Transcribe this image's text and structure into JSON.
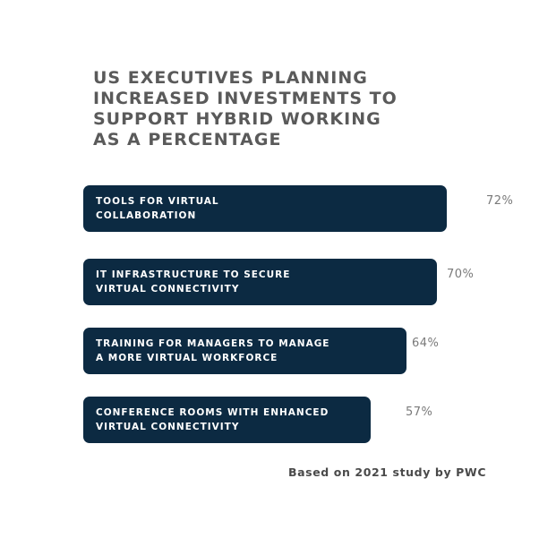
{
  "chart_data": {
    "type": "bar",
    "orientation": "horizontal",
    "title": "US EXECUTIVES PLANNING INCREASED INVESTMENTS TO SUPPORT HYBRID WORKING AS A PERCENTAGE",
    "title_lines": [
      "US EXECUTIVES PLANNING",
      "INCREASED INVESTMENTS TO",
      "SUPPORT HYBRID WORKING",
      "AS A PERCENTAGE"
    ],
    "categories": [
      "TOOLS FOR VIRTUAL COLLABORATION",
      "IT INFRASTRUCTURE TO SECURE VIRTUAL CONNECTIVITY",
      "TRAINING FOR MANAGERS TO MANAGE A MORE VIRTUAL WORKFORCE",
      "CONFERENCE ROOMS WITH ENHANCED VIRTUAL CONNECTIVITY"
    ],
    "category_lines": [
      [
        "TOOLS FOR VIRTUAL",
        "COLLABORATION"
      ],
      [
        "IT INFRASTRUCTURE TO SECURE",
        "VIRTUAL CONNECTIVITY"
      ],
      [
        "TRAINING FOR MANAGERS TO MANAGE",
        "A MORE VIRTUAL WORKFORCE"
      ],
      [
        "CONFERENCE ROOMS WITH ENHANCED",
        "VIRTUAL CONNECTIVITY"
      ]
    ],
    "values": [
      72,
      70,
      64,
      57
    ],
    "value_labels": [
      "72%",
      "70%",
      "64%",
      "57%"
    ],
    "unit": "%",
    "bar_color": "#0c2a42",
    "grid": false,
    "legend": "none"
  },
  "source": "Based on 2021 study by PWC"
}
